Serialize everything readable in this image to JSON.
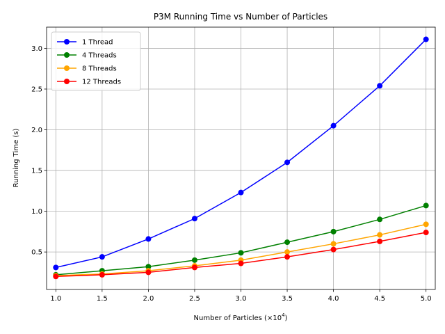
{
  "chart_data": {
    "type": "line",
    "title": "P3M Running Time vs Number of Particles",
    "xlabel": "Number of Particles (×10",
    "xlabel_sup": "4",
    "xlabel_suffix": ")",
    "ylabel": "Running Time (s)",
    "x": [
      1.0,
      1.5,
      2.0,
      2.5,
      3.0,
      3.5,
      4.0,
      4.5,
      5.0
    ],
    "xticks": [
      "1.0",
      "1.5",
      "2.0",
      "2.5",
      "3.0",
      "3.5",
      "4.0",
      "4.5",
      "5.0"
    ],
    "yticks": [
      "0.5",
      "1.0",
      "1.5",
      "2.0",
      "2.5",
      "3.0"
    ],
    "xlim": [
      0.9,
      5.1
    ],
    "ylim": [
      0.04,
      3.26
    ],
    "grid": true,
    "legend_position": "top-left",
    "series": [
      {
        "name": "1 Thread",
        "color": "#0000ff",
        "values": [
          0.31,
          0.44,
          0.66,
          0.91,
          1.23,
          1.6,
          2.05,
          2.54,
          3.11
        ]
      },
      {
        "name": "4 Threads",
        "color": "#008000",
        "values": [
          0.22,
          0.27,
          0.32,
          0.4,
          0.49,
          0.62,
          0.75,
          0.9,
          1.07
        ]
      },
      {
        "name": "8 Threads",
        "color": "#ffa500",
        "values": [
          0.21,
          0.23,
          0.27,
          0.33,
          0.4,
          0.5,
          0.6,
          0.71,
          0.84
        ]
      },
      {
        "name": "12 Threads",
        "color": "#ff0000",
        "values": [
          0.2,
          0.22,
          0.25,
          0.31,
          0.36,
          0.44,
          0.53,
          0.63,
          0.74
        ]
      }
    ]
  }
}
